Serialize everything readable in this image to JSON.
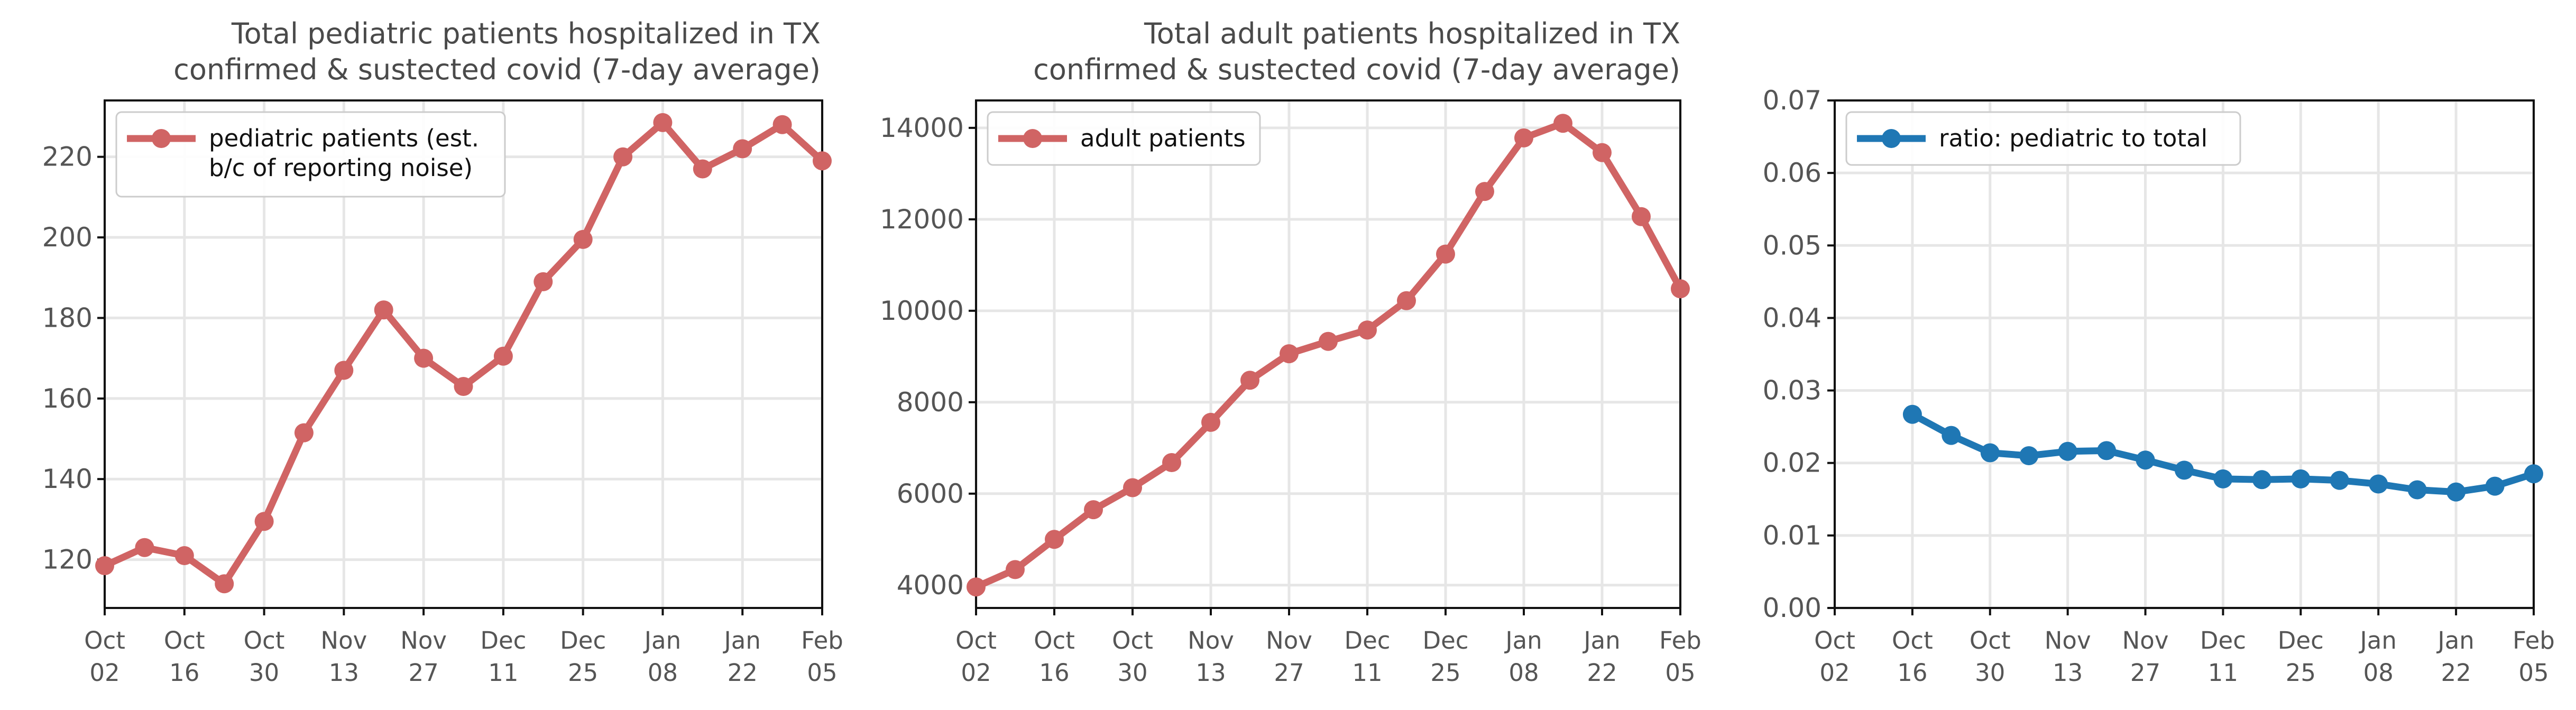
{
  "chart_data": [
    {
      "type": "line",
      "title_lines": [
        "Total pediatric patients hospitalized in TX",
        "confirmed & sustected covid (7-day average)"
      ],
      "x_tick_labels": [
        [
          "Oct",
          "02"
        ],
        [
          "Oct",
          "16"
        ],
        [
          "Oct",
          "30"
        ],
        [
          "Nov",
          "13"
        ],
        [
          "Nov",
          "27"
        ],
        [
          "Dec",
          "11"
        ],
        [
          "Dec",
          "25"
        ],
        [
          "Jan",
          "08"
        ],
        [
          "Jan",
          "22"
        ],
        [
          "Feb",
          "05"
        ]
      ],
      "x_tick_positions": [
        0,
        2,
        4,
        6,
        8,
        10,
        12,
        14,
        16,
        18
      ],
      "x": [
        0,
        1,
        2,
        3,
        4,
        5,
        6,
        7,
        8,
        9,
        10,
        11,
        12,
        13,
        14,
        15,
        16,
        17,
        18
      ],
      "xlim": [
        0,
        18.0
      ],
      "ylim": [
        108,
        234
      ],
      "yticks": [
        120,
        140,
        160,
        180,
        200,
        220
      ],
      "series": [
        {
          "name": "pediatric patients (est.\nb/c of reporting noise)",
          "legend_lines": [
            "pediatric patients (est.",
            "b/c of reporting noise)"
          ],
          "color": "#d06464",
          "values": [
            118.5,
            123,
            121,
            114,
            129.5,
            151.5,
            167,
            182,
            170,
            163,
            170.5,
            189,
            199.5,
            220,
            228.5,
            217,
            222,
            228,
            219
          ]
        }
      ],
      "grid": true,
      "legend": "upper-left"
    },
    {
      "type": "line",
      "title_lines": [
        "Total adult patients hospitalized in TX",
        "confirmed & sustected covid (7-day average)"
      ],
      "x_tick_labels": [
        [
          "Oct",
          "02"
        ],
        [
          "Oct",
          "16"
        ],
        [
          "Oct",
          "30"
        ],
        [
          "Nov",
          "13"
        ],
        [
          "Nov",
          "27"
        ],
        [
          "Dec",
          "11"
        ],
        [
          "Dec",
          "25"
        ],
        [
          "Jan",
          "08"
        ],
        [
          "Jan",
          "22"
        ],
        [
          "Feb",
          "05"
        ]
      ],
      "x_tick_positions": [
        0,
        2,
        4,
        6,
        8,
        10,
        12,
        14,
        16,
        18
      ],
      "x": [
        0,
        1,
        2,
        3,
        4,
        5,
        6,
        7,
        8,
        9,
        10,
        11,
        12,
        13,
        14,
        15,
        16,
        17,
        18
      ],
      "xlim": [
        0,
        18.0
      ],
      "ylim": [
        3500,
        14600
      ],
      "yticks": [
        4000,
        6000,
        8000,
        10000,
        12000,
        14000
      ],
      "series": [
        {
          "name": "adult patients",
          "legend_lines": [
            "adult patients"
          ],
          "color": "#d06464",
          "values": [
            3960,
            4340,
            5000,
            5650,
            6130,
            6680,
            7560,
            8480,
            9060,
            9330,
            9580,
            10220,
            11240,
            12610,
            13780,
            14100,
            13460,
            12060,
            10480
          ]
        }
      ],
      "grid": true,
      "legend": "upper-left"
    },
    {
      "type": "line",
      "title_lines": [],
      "x_tick_labels": [
        [
          "Oct",
          "02"
        ],
        [
          "Oct",
          "16"
        ],
        [
          "Oct",
          "30"
        ],
        [
          "Nov",
          "13"
        ],
        [
          "Nov",
          "27"
        ],
        [
          "Dec",
          "11"
        ],
        [
          "Dec",
          "25"
        ],
        [
          "Jan",
          "08"
        ],
        [
          "Jan",
          "22"
        ],
        [
          "Feb",
          "05"
        ]
      ],
      "x_tick_positions": [
        0,
        2,
        4,
        6,
        8,
        10,
        12,
        14,
        16,
        18
      ],
      "x": [
        2,
        3,
        4,
        5,
        6,
        7,
        8,
        9,
        10,
        11,
        12,
        13,
        14,
        15,
        16,
        17,
        18
      ],
      "xlim": [
        0,
        18.0
      ],
      "ylim": [
        0,
        0.07
      ],
      "yticks": [
        0.0,
        0.01,
        0.02,
        0.03,
        0.04,
        0.05,
        0.06,
        0.07
      ],
      "ytick_labels": [
        "0.00",
        "0.01",
        "0.02",
        "0.03",
        "0.04",
        "0.05",
        "0.06",
        "0.07"
      ],
      "series": [
        {
          "name": "ratio: pediatric to total",
          "legend_lines": [
            "ratio: pediatric to total"
          ],
          "color": "#1f77b4",
          "values": [
            0.0267,
            0.0238,
            0.0214,
            0.021,
            0.0216,
            0.0217,
            0.0204,
            0.019,
            0.0178,
            0.0177,
            0.0178,
            0.0176,
            0.0171,
            0.0163,
            0.016,
            0.0168,
            0.0185
          ]
        }
      ],
      "grid": true,
      "legend": "upper-left"
    }
  ]
}
